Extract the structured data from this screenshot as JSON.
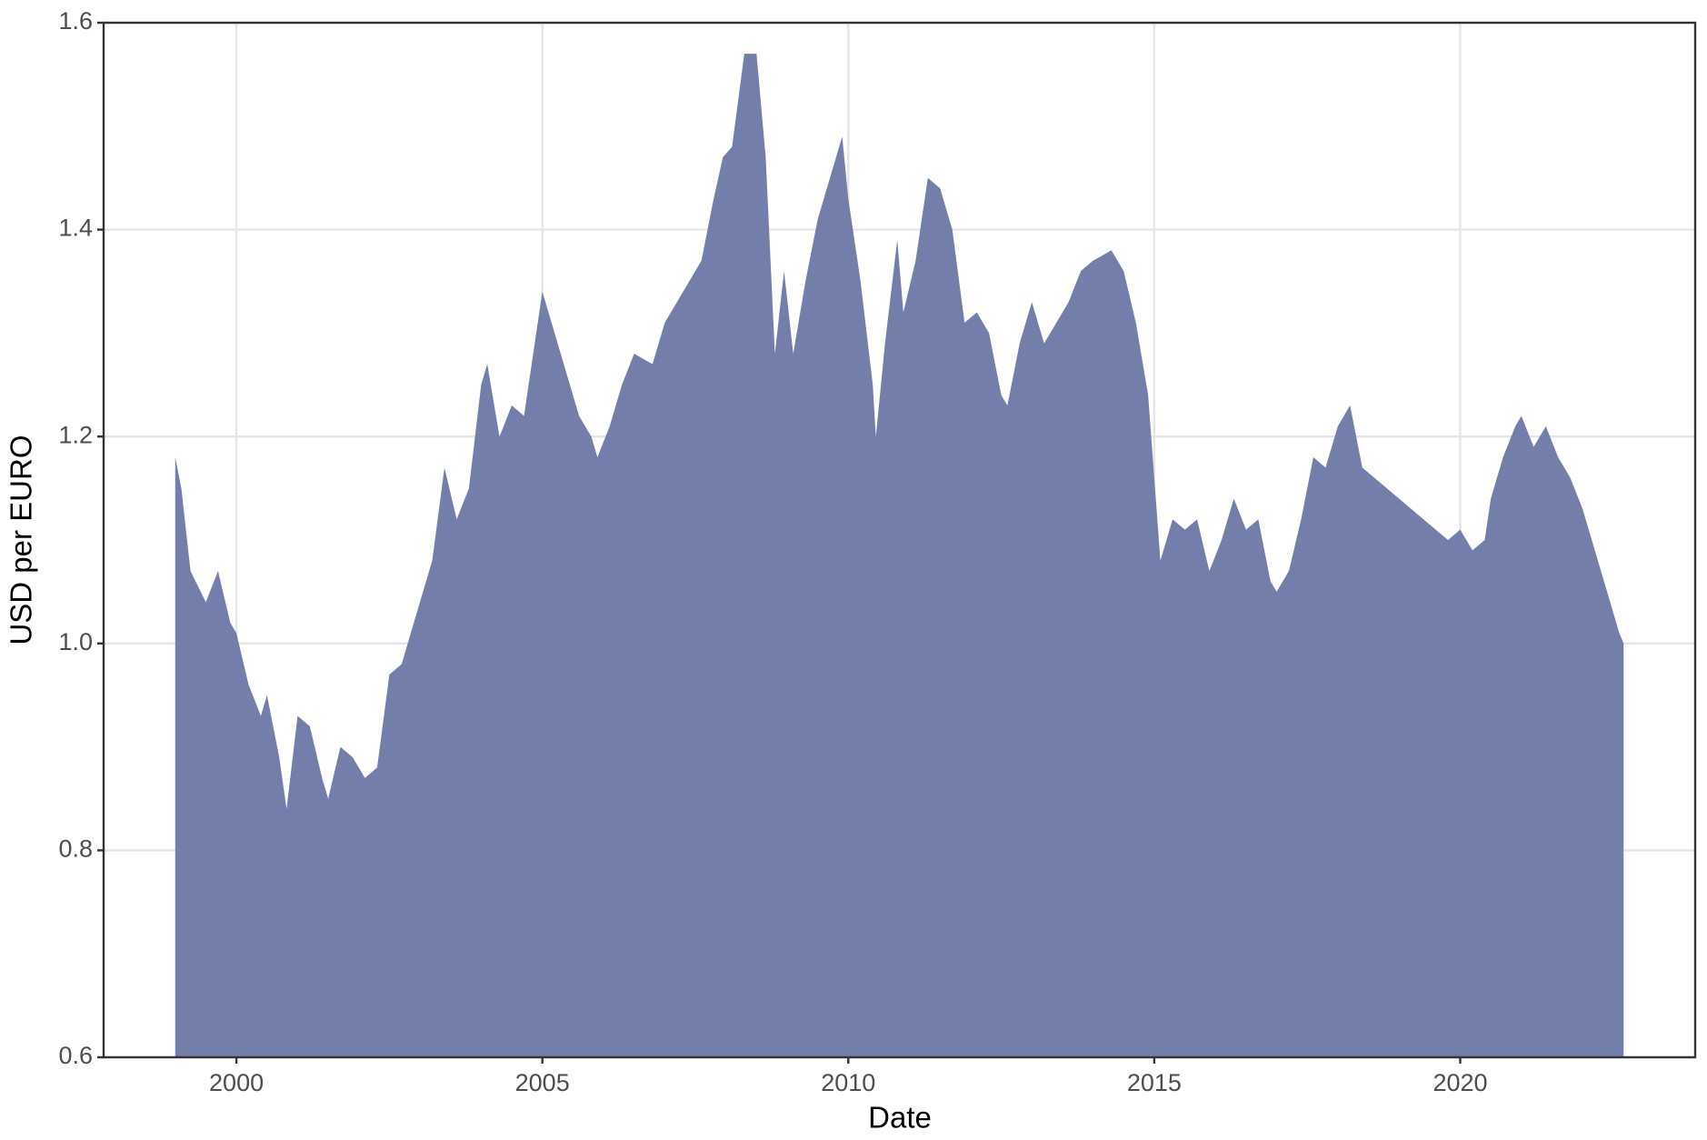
{
  "chart_data": {
    "type": "area",
    "xlabel": "Date",
    "ylabel": "USD per EURO",
    "color": "#717ba8",
    "grid": true,
    "x": [
      1999.0,
      1999.1,
      1999.25,
      1999.5,
      1999.7,
      1999.9,
      2000.0,
      2000.2,
      2000.4,
      2000.5,
      2000.7,
      2000.82,
      2001.0,
      2001.2,
      2001.4,
      2001.5,
      2001.7,
      2001.9,
      2002.1,
      2002.3,
      2002.5,
      2002.7,
      2003.0,
      2003.2,
      2003.4,
      2003.6,
      2003.8,
      2004.0,
      2004.1,
      2004.3,
      2004.5,
      2004.7,
      2004.9,
      2005.0,
      2005.2,
      2005.4,
      2005.6,
      2005.8,
      2005.9,
      2006.1,
      2006.3,
      2006.5,
      2006.8,
      2007.0,
      2007.2,
      2007.4,
      2007.6,
      2007.8,
      2007.95,
      2008.1,
      2008.3,
      2008.5,
      2008.65,
      2008.8,
      2008.95,
      2009.1,
      2009.3,
      2009.5,
      2009.7,
      2009.9,
      2010.0,
      2010.2,
      2010.4,
      2010.45,
      2010.6,
      2010.8,
      2010.9,
      2011.1,
      2011.3,
      2011.5,
      2011.7,
      2011.9,
      2012.1,
      2012.3,
      2012.5,
      2012.6,
      2012.8,
      2013.0,
      2013.2,
      2013.4,
      2013.6,
      2013.8,
      2014.0,
      2014.3,
      2014.5,
      2014.7,
      2014.9,
      2015.0,
      2015.1,
      2015.3,
      2015.5,
      2015.7,
      2015.9,
      2016.1,
      2016.3,
      2016.5,
      2016.7,
      2016.9,
      2017.0,
      2017.2,
      2017.4,
      2017.6,
      2017.8,
      2018.0,
      2018.2,
      2018.4,
      2018.6,
      2018.8,
      2019.0,
      2019.2,
      2019.4,
      2019.6,
      2019.8,
      2020.0,
      2020.2,
      2020.4,
      2020.5,
      2020.7,
      2020.9,
      2021.0,
      2021.2,
      2021.4,
      2021.6,
      2021.8,
      2022.0,
      2022.2,
      2022.4,
      2022.6,
      2022.67
    ],
    "values": [
      1.18,
      1.15,
      1.07,
      1.04,
      1.07,
      1.02,
      1.01,
      0.96,
      0.93,
      0.95,
      0.89,
      0.84,
      0.93,
      0.92,
      0.87,
      0.85,
      0.9,
      0.89,
      0.87,
      0.88,
      0.97,
      0.98,
      1.04,
      1.08,
      1.17,
      1.12,
      1.15,
      1.25,
      1.27,
      1.2,
      1.23,
      1.22,
      1.3,
      1.34,
      1.3,
      1.26,
      1.22,
      1.2,
      1.18,
      1.21,
      1.25,
      1.28,
      1.27,
      1.31,
      1.33,
      1.35,
      1.37,
      1.43,
      1.47,
      1.48,
      1.57,
      1.57,
      1.47,
      1.28,
      1.36,
      1.28,
      1.35,
      1.41,
      1.45,
      1.49,
      1.43,
      1.35,
      1.25,
      1.2,
      1.29,
      1.39,
      1.32,
      1.37,
      1.45,
      1.44,
      1.4,
      1.31,
      1.32,
      1.3,
      1.24,
      1.23,
      1.29,
      1.33,
      1.29,
      1.31,
      1.33,
      1.36,
      1.37,
      1.38,
      1.36,
      1.31,
      1.24,
      1.16,
      1.08,
      1.12,
      1.11,
      1.12,
      1.07,
      1.1,
      1.14,
      1.11,
      1.12,
      1.06,
      1.05,
      1.07,
      1.12,
      1.18,
      1.17,
      1.21,
      1.23,
      1.17,
      1.16,
      1.15,
      1.14,
      1.13,
      1.12,
      1.11,
      1.1,
      1.11,
      1.09,
      1.1,
      1.14,
      1.18,
      1.21,
      1.22,
      1.19,
      1.21,
      1.18,
      1.16,
      1.13,
      1.09,
      1.05,
      1.01,
      1.0
    ],
    "xlim": [
      1997.83,
      2023.84
    ],
    "xticks": [
      2000,
      2005,
      2010,
      2015,
      2020
    ],
    "ylim": [
      0.6,
      1.6
    ],
    "yticks": [
      {
        "value": 0.6,
        "label": "0.6"
      },
      {
        "value": 0.8,
        "label": "0.8"
      },
      {
        "value": 1.0,
        "label": "1.0"
      },
      {
        "value": 1.2,
        "label": "1.2"
      },
      {
        "value": 1.4,
        "label": "1.4"
      },
      {
        "value": 1.6,
        "label": "1.6"
      }
    ]
  }
}
